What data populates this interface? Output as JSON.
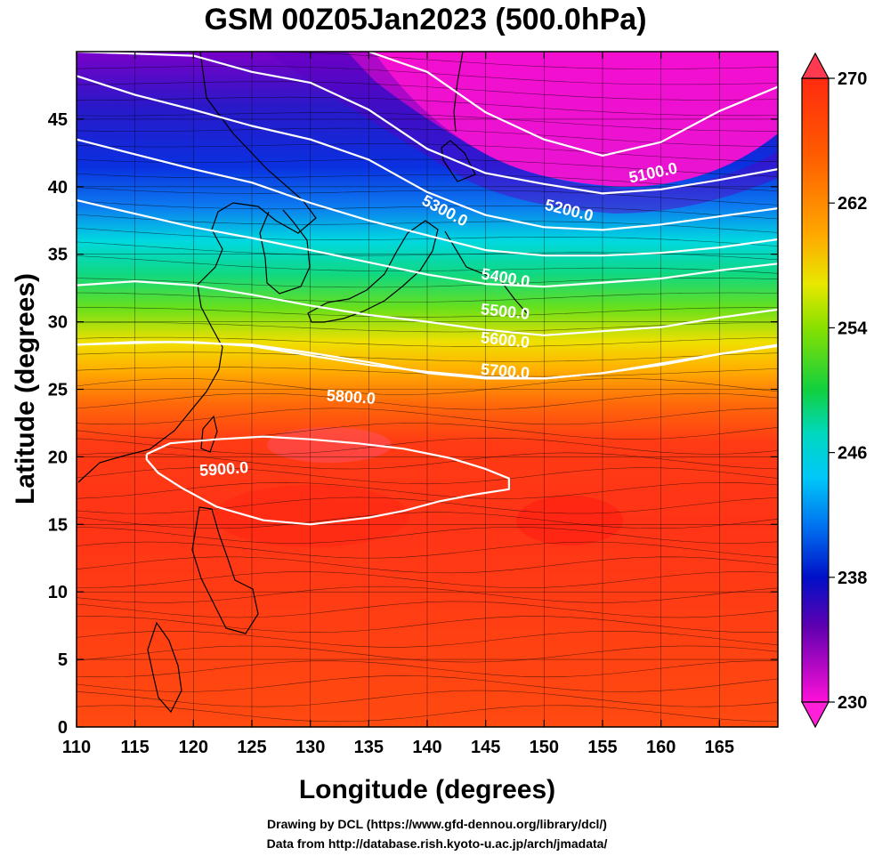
{
  "title": "GSM 00Z05Jan2023 (500.0hPa)",
  "x_axis": {
    "label": "Longitude (degrees)",
    "ticks": [
      "110",
      "115",
      "120",
      "125",
      "130",
      "135",
      "140",
      "145",
      "150",
      "155",
      "160",
      "165"
    ]
  },
  "y_axis": {
    "label": "Latitude  (degrees)",
    "ticks": [
      "0",
      "5",
      "10",
      "15",
      "20",
      "25",
      "30",
      "35",
      "40",
      "45"
    ]
  },
  "colorbar": {
    "labels": [
      "270",
      "262",
      "254",
      "246",
      "238",
      "230"
    ],
    "colors": [
      "#ff2a10",
      "#ff7a00",
      "#f2d400",
      "#2bd21e",
      "#00e6e6",
      "#0060ff",
      "#2000b0",
      "#a000d0",
      "#ff00cc"
    ]
  },
  "contours": {
    "labels": [
      "5100.0",
      "5200.0",
      "5300.0",
      "5400.0",
      "5500.0",
      "5600.0",
      "5700.0",
      "5800.0",
      "5900.0"
    ]
  },
  "credits": {
    "line1": "Drawing by DCL (https://www.gfd-dennou.org/library/dcl/)",
    "line2": "Data from http://database.rish.kyoto-u.ac.jp/arch/jmadata/"
  },
  "chart_data": {
    "type": "heatmap",
    "title": "GSM 00Z05Jan2023 (500.0hPa)",
    "xlabel": "Longitude (degrees)",
    "ylabel": "Latitude  (degrees)",
    "xlim": [
      110,
      170
    ],
    "ylim": [
      0,
      50
    ],
    "colorbar_range": [
      230,
      270
    ],
    "colorbar_ticks": [
      230,
      238,
      246,
      254,
      262,
      270
    ],
    "contour_levels": [
      5100,
      5200,
      5300,
      5400,
      5500,
      5600,
      5700,
      5800,
      5900
    ],
    "contours": [
      {
        "level": 5100,
        "points": [
          [
            135,
            50
          ],
          [
            140,
            48.5
          ],
          [
            145,
            45.5
          ],
          [
            150,
            43.5
          ],
          [
            155,
            42.3
          ],
          [
            160,
            43.3
          ],
          [
            165,
            45.6
          ],
          [
            170,
            47.4
          ]
        ]
      },
      {
        "level": 5200,
        "points": [
          [
            110,
            50
          ],
          [
            120,
            49.7
          ],
          [
            125,
            48.5
          ],
          [
            130,
            47.7
          ],
          [
            135,
            45.7
          ],
          [
            140,
            42.8
          ],
          [
            145,
            41
          ],
          [
            150,
            40.2
          ],
          [
            155,
            39.5
          ],
          [
            160,
            39.8
          ],
          [
            165,
            40.5
          ],
          [
            170,
            41.3
          ]
        ]
      },
      {
        "level": 5300,
        "points": [
          [
            110,
            48.2
          ],
          [
            115,
            46.8
          ],
          [
            120,
            45.7
          ],
          [
            125,
            44.5
          ],
          [
            130,
            43.5
          ],
          [
            135,
            42
          ],
          [
            140,
            39.6
          ],
          [
            145,
            37.9
          ],
          [
            150,
            37
          ],
          [
            155,
            36.8
          ],
          [
            160,
            37.2
          ],
          [
            165,
            37.8
          ],
          [
            170,
            38.4
          ]
        ]
      },
      {
        "level": 5400,
        "points": [
          [
            110,
            43.5
          ],
          [
            115,
            42.4
          ],
          [
            120,
            41.3
          ],
          [
            125,
            40.3
          ],
          [
            130,
            38.8
          ],
          [
            135,
            37.5
          ],
          [
            140,
            36.4
          ],
          [
            145,
            35.3
          ],
          [
            150,
            34.9
          ],
          [
            155,
            34.9
          ],
          [
            160,
            35.1
          ],
          [
            165,
            35.5
          ],
          [
            170,
            36.1
          ]
        ]
      },
      {
        "level": 5500,
        "points": [
          [
            110,
            39
          ],
          [
            115,
            38
          ],
          [
            120,
            37
          ],
          [
            125,
            36.2
          ],
          [
            130,
            35.3
          ],
          [
            135,
            34.4
          ],
          [
            140,
            33.5
          ],
          [
            145,
            32.8
          ],
          [
            150,
            32.6
          ],
          [
            155,
            32.9
          ],
          [
            160,
            33.2
          ],
          [
            165,
            33.8
          ],
          [
            170,
            34.3
          ]
        ]
      },
      {
        "level": 5600,
        "points": [
          [
            110,
            32.7
          ],
          [
            115,
            33
          ],
          [
            120,
            32.7
          ],
          [
            125,
            32
          ],
          [
            130,
            31.2
          ],
          [
            135,
            30.5
          ],
          [
            140,
            30
          ],
          [
            145,
            29.4
          ],
          [
            150,
            29
          ],
          [
            155,
            29.3
          ],
          [
            160,
            29.6
          ],
          [
            165,
            30.3
          ],
          [
            170,
            30.9
          ]
        ]
      },
      {
        "level": 5700,
        "points": [
          [
            110,
            28.3
          ],
          [
            115,
            28.5
          ],
          [
            120,
            28.5
          ],
          [
            125,
            28.2
          ],
          [
            130,
            27.5
          ],
          [
            135,
            26.8
          ],
          [
            140,
            26.3
          ],
          [
            145,
            25.9
          ],
          [
            150,
            25.8
          ],
          [
            155,
            26.2
          ],
          [
            160,
            26.8
          ],
          [
            165,
            27.6
          ],
          [
            170,
            28.2
          ]
        ]
      },
      {
        "level": 5800,
        "points": [
          [
            110,
            28.3
          ],
          [
            118,
            28.5
          ],
          [
            125,
            28.3
          ],
          [
            130,
            27.7
          ],
          [
            135,
            27
          ],
          [
            140,
            26.2
          ],
          [
            145,
            25.8
          ],
          [
            150,
            25.8
          ],
          [
            155,
            26.2
          ],
          [
            162,
            27.2
          ],
          [
            170,
            28.3
          ]
        ]
      },
      {
        "level": 5900,
        "points": [
          [
            116,
            20.2
          ],
          [
            118,
            21
          ],
          [
            122,
            21.3
          ],
          [
            126,
            21.5
          ],
          [
            130,
            21.3
          ],
          [
            134,
            21
          ],
          [
            138,
            20.6
          ],
          [
            142,
            19.9
          ],
          [
            145,
            19.1
          ],
          [
            147,
            18.4
          ],
          [
            147,
            17.6
          ],
          [
            144,
            17.2
          ],
          [
            141,
            16.7
          ],
          [
            138,
            16
          ],
          [
            135,
            15.5
          ],
          [
            130,
            15
          ],
          [
            126,
            15.3
          ],
          [
            122,
            16.3
          ],
          [
            119,
            17.7
          ],
          [
            117,
            18.8
          ],
          [
            116,
            19.8
          ],
          [
            116,
            20.2
          ]
        ]
      }
    ]
  }
}
